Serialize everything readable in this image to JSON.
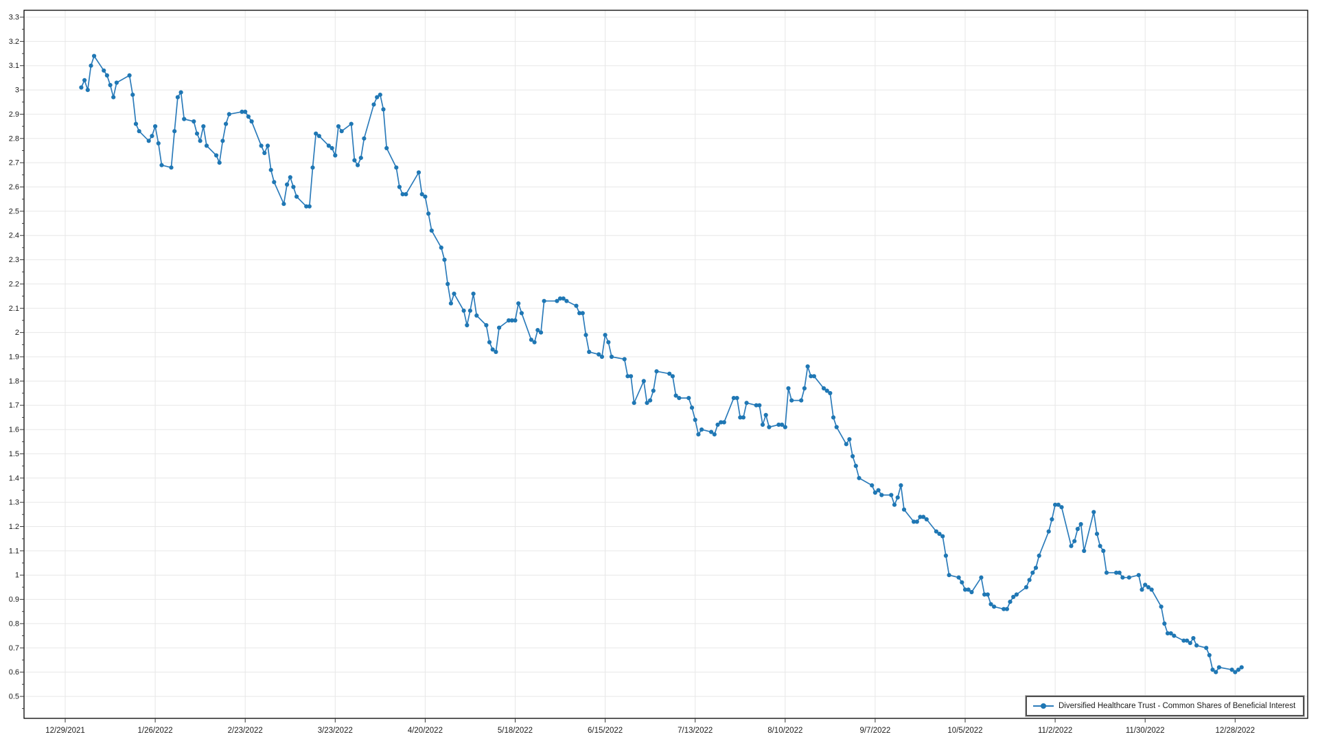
{
  "chart_data": {
    "type": "line",
    "title": "",
    "grid": true,
    "legend": {
      "position": "bottom-right",
      "border": true
    },
    "colors": {
      "line": "#2b7bba",
      "marker": "#1f77b4",
      "gridline": "#e7e7e7",
      "axis": "#000000",
      "tick": "#333333",
      "label_text": "#1a1a1a",
      "background": "#ffffff"
    },
    "x_axis": {
      "start_date": "12/29/2021",
      "end_date": "12/28/2022",
      "tick_interval_days": 28,
      "tick_labels": [
        "12/29/2021",
        "1/26/2022",
        "2/23/2022",
        "3/23/2022",
        "4/20/2022",
        "5/18/2022",
        "6/15/2022",
        "7/13/2022",
        "8/10/2022",
        "9/7/2022",
        "10/5/2022",
        "11/2/2022",
        "11/30/2022",
        "12/28/2022"
      ]
    },
    "y_axis": {
      "min": 0.41,
      "max": 3.33,
      "tick_min": 0.5,
      "tick_max": 3.3,
      "tick_step": 0.1,
      "minor_tick_step": 0.05,
      "tick_labels": [
        "0.5",
        "0.6",
        "0.7",
        "0.8",
        "0.9",
        "1",
        "1.1",
        "1.2",
        "1.3",
        "1.4",
        "1.5",
        "1.6",
        "1.7",
        "1.8",
        "1.9",
        "2",
        "2.1",
        "2.2",
        "2.3",
        "2.4",
        "2.5",
        "2.6",
        "2.7",
        "2.8",
        "2.9",
        "3",
        "3.1",
        "3.2",
        "3.3"
      ]
    },
    "series": [
      {
        "name": "Diversified Healthcare Trust  - Common Shares of Beneficial Interest",
        "year": 2022,
        "points_by_month": [
          {
            "month": 1,
            "days": [
              3,
              4,
              5,
              6,
              7,
              10,
              11,
              12,
              13,
              14,
              18,
              19,
              20,
              21,
              24,
              25,
              26,
              27,
              28,
              31
            ],
            "values": [
              3.01,
              3.04,
              3.0,
              3.1,
              3.14,
              3.08,
              3.06,
              3.02,
              2.97,
              3.03,
              3.06,
              2.98,
              2.86,
              2.83,
              2.79,
              2.81,
              2.85,
              2.78,
              2.69,
              2.68
            ]
          },
          {
            "month": 2,
            "days": [
              1,
              2,
              3,
              4,
              7,
              8,
              9,
              10,
              11,
              14,
              15,
              16,
              17,
              18,
              22,
              23,
              24,
              25,
              28
            ],
            "values": [
              2.83,
              2.97,
              2.99,
              2.88,
              2.87,
              2.82,
              2.79,
              2.85,
              2.77,
              2.73,
              2.7,
              2.79,
              2.86,
              2.9,
              2.91,
              2.91,
              2.89,
              2.87,
              2.77
            ]
          },
          {
            "month": 3,
            "days": [
              1,
              2,
              3,
              4,
              7,
              8,
              9,
              10,
              11,
              14,
              15,
              16,
              17,
              18,
              21,
              22,
              23,
              24,
              25,
              28,
              29,
              30,
              31
            ],
            "values": [
              2.74,
              2.77,
              2.67,
              2.62,
              2.53,
              2.61,
              2.64,
              2.6,
              2.56,
              2.52,
              2.52,
              2.68,
              2.82,
              2.81,
              2.77,
              2.76,
              2.73,
              2.85,
              2.83,
              2.86,
              2.71,
              2.69,
              2.72
            ]
          },
          {
            "month": 4,
            "days": [
              1,
              4,
              5,
              6,
              7,
              8,
              11,
              12,
              13,
              14,
              18,
              19,
              20,
              21,
              22,
              25,
              26,
              27,
              28,
              29
            ],
            "values": [
              2.8,
              2.94,
              2.97,
              2.98,
              2.92,
              2.76,
              2.68,
              2.6,
              2.57,
              2.57,
              2.66,
              2.57,
              2.56,
              2.49,
              2.42,
              2.35,
              2.3,
              2.2,
              2.12,
              2.16
            ]
          },
          {
            "month": 5,
            "days": [
              2,
              3,
              4,
              5,
              6,
              9,
              10,
              11,
              12,
              13,
              16,
              17,
              18,
              19,
              20,
              23,
              24,
              25,
              26,
              27,
              31
            ],
            "values": [
              2.09,
              2.03,
              2.09,
              2.16,
              2.07,
              2.03,
              1.96,
              1.93,
              1.92,
              2.02,
              2.05,
              2.05,
              2.05,
              2.12,
              2.08,
              1.97,
              1.96,
              2.01,
              2.0,
              2.13,
              2.13
            ]
          },
          {
            "month": 6,
            "days": [
              1,
              2,
              3,
              6,
              7,
              8,
              9,
              10,
              13,
              14,
              15,
              16,
              17,
              21,
              22,
              23,
              24,
              27,
              28,
              29,
              30
            ],
            "values": [
              2.14,
              2.14,
              2.13,
              2.11,
              2.08,
              2.08,
              1.99,
              1.92,
              1.91,
              1.9,
              1.99,
              1.96,
              1.9,
              1.89,
              1.82,
              1.82,
              1.71,
              1.8,
              1.71,
              1.72,
              1.76
            ]
          },
          {
            "month": 7,
            "days": [
              1,
              5,
              6,
              7,
              8,
              11,
              12,
              13,
              14,
              15,
              18,
              19,
              20,
              21,
              22,
              25,
              26,
              27,
              28,
              29
            ],
            "values": [
              1.84,
              1.83,
              1.82,
              1.74,
              1.73,
              1.73,
              1.69,
              1.64,
              1.58,
              1.6,
              1.59,
              1.58,
              1.62,
              1.63,
              1.63,
              1.73,
              1.73,
              1.65,
              1.65,
              1.71
            ]
          },
          {
            "month": 8,
            "days": [
              1,
              2,
              3,
              4,
              5,
              8,
              9,
              10,
              11,
              12,
              15,
              16,
              17,
              18,
              19,
              22,
              23,
              24,
              25,
              26,
              29,
              30,
              31
            ],
            "values": [
              1.7,
              1.7,
              1.62,
              1.66,
              1.61,
              1.62,
              1.62,
              1.61,
              1.77,
              1.72,
              1.72,
              1.77,
              1.86,
              1.82,
              1.82,
              1.77,
              1.76,
              1.75,
              1.65,
              1.61,
              1.54,
              1.56,
              1.49
            ]
          },
          {
            "month": 9,
            "days": [
              1,
              2,
              6,
              7,
              8,
              9,
              12,
              13,
              14,
              15,
              16,
              19,
              20,
              21,
              22,
              23,
              26,
              27,
              28,
              29,
              30
            ],
            "values": [
              1.45,
              1.4,
              1.37,
              1.34,
              1.35,
              1.33,
              1.33,
              1.29,
              1.32,
              1.37,
              1.27,
              1.22,
              1.22,
              1.24,
              1.24,
              1.23,
              1.18,
              1.17,
              1.16,
              1.08,
              1.0
            ]
          },
          {
            "month": 10,
            "days": [
              3,
              4,
              5,
              6,
              7,
              10,
              11,
              12,
              13,
              14,
              17,
              18,
              19,
              20,
              21,
              24,
              25,
              26,
              27,
              28,
              31
            ],
            "values": [
              0.99,
              0.97,
              0.94,
              0.94,
              0.93,
              0.99,
              0.92,
              0.92,
              0.88,
              0.87,
              0.86,
              0.86,
              0.89,
              0.91,
              0.92,
              0.95,
              0.98,
              1.01,
              1.03,
              1.08,
              1.18
            ]
          },
          {
            "month": 11,
            "days": [
              1,
              2,
              3,
              4,
              7,
              8,
              9,
              10,
              11,
              14,
              15,
              16,
              17,
              18,
              21,
              22,
              23,
              25,
              28,
              29,
              30
            ],
            "values": [
              1.23,
              1.29,
              1.29,
              1.28,
              1.12,
              1.14,
              1.19,
              1.21,
              1.1,
              1.26,
              1.17,
              1.12,
              1.1,
              1.01,
              1.01,
              1.01,
              0.99,
              0.99,
              1.0,
              0.94,
              0.96
            ]
          },
          {
            "month": 12,
            "days": [
              1,
              2,
              5,
              6,
              7,
              8,
              9,
              12,
              13,
              14,
              15,
              16,
              19,
              20,
              21,
              22,
              23,
              27,
              28,
              29,
              30
            ],
            "values": [
              0.95,
              0.94,
              0.87,
              0.8,
              0.76,
              0.76,
              0.75,
              0.73,
              0.73,
              0.72,
              0.74,
              0.71,
              0.7,
              0.67,
              0.61,
              0.6,
              0.62,
              0.61,
              0.6,
              0.61,
              0.62
            ]
          }
        ]
      }
    ]
  }
}
